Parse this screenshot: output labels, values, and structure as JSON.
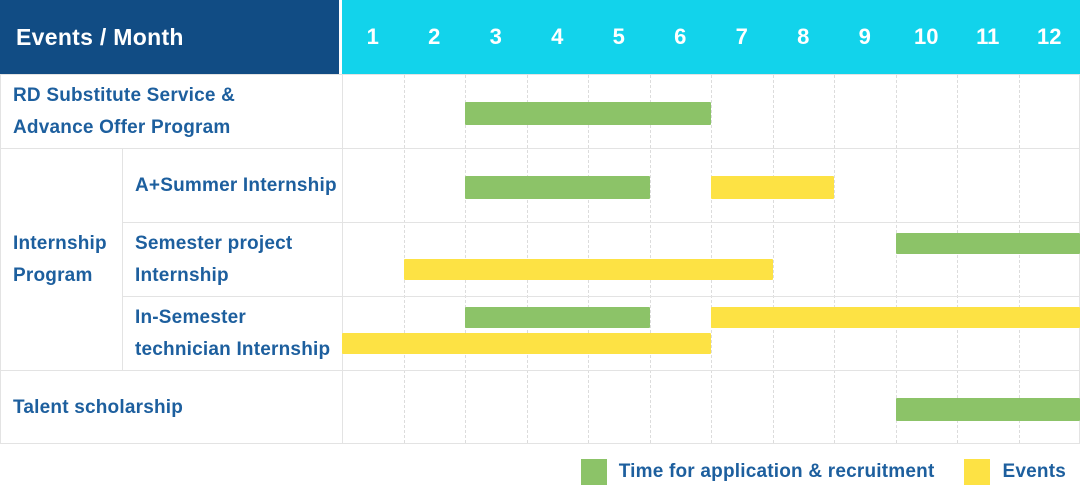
{
  "colors": {
    "header_bg": "#114C84",
    "months_bg": "#12D3EB",
    "application": "#8CC368",
    "event": "#FDE244",
    "text_blue": "#1D5F9E",
    "grid_solid": "#E3E3E3",
    "grid_dashed": "#DCDCDC"
  },
  "chart_data": {
    "type": "gantt",
    "corner_label": "Events / Month",
    "months": [
      "1",
      "2",
      "3",
      "4",
      "5",
      "6",
      "7",
      "8",
      "9",
      "10",
      "11",
      "12"
    ],
    "x_range": [
      1,
      12
    ],
    "rows": [
      {
        "label": "RD Substitute Service & Advance Offer Program",
        "group": "",
        "bars": [
          {
            "kind": "application",
            "start": 3,
            "end": 6,
            "lane": "center"
          }
        ]
      },
      {
        "label": "A+Summer Internship",
        "group": "Internship Program",
        "bars": [
          {
            "kind": "application",
            "start": 3,
            "end": 5,
            "lane": "center"
          },
          {
            "kind": "event",
            "start": 7,
            "end": 8,
            "lane": "center"
          }
        ]
      },
      {
        "label": "Semester project Internship",
        "group": "Internship Program",
        "bars": [
          {
            "kind": "application",
            "start": 10,
            "end": 12,
            "lane": "upper"
          },
          {
            "kind": "event",
            "start": 2,
            "end": 7,
            "lane": "lower"
          }
        ]
      },
      {
        "label": "In-Semester technician Internship",
        "group": "Internship Program",
        "bars": [
          {
            "kind": "application",
            "start": 3,
            "end": 5,
            "lane": "upper"
          },
          {
            "kind": "event",
            "start": 7,
            "end": 12,
            "lane": "upper"
          },
          {
            "kind": "event",
            "start": 1,
            "end": 6,
            "lane": "lower"
          }
        ]
      },
      {
        "label": "Talent scholarship",
        "group": "",
        "bars": [
          {
            "kind": "application",
            "start": 10,
            "end": 12,
            "lane": "center"
          }
        ]
      }
    ],
    "groups": [
      {
        "label": "Internship Program",
        "row_start": 1,
        "row_end": 3
      }
    ],
    "legend": [
      {
        "kind": "application",
        "label": "Time for application & recruitment"
      },
      {
        "kind": "event",
        "label": "Events"
      }
    ]
  }
}
